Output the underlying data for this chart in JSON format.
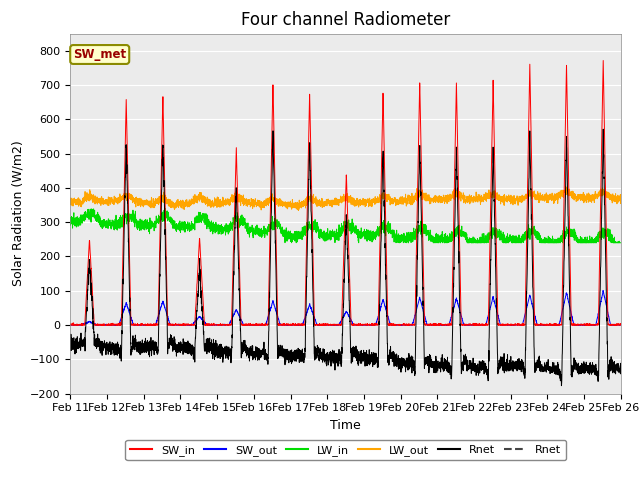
{
  "title": "Four channel Radiometer",
  "xlabel": "Time",
  "ylabel": "Solar Radiation (W/m2)",
  "ylim": [
    -200,
    850
  ],
  "yticks": [
    -200,
    -100,
    0,
    100,
    200,
    300,
    400,
    500,
    600,
    700,
    800
  ],
  "x_labels": [
    "Feb 11",
    "Feb 12",
    "Feb 13",
    "Feb 14",
    "Feb 15",
    "Feb 16",
    "Feb 17",
    "Feb 18",
    "Feb 19",
    "Feb 20",
    "Feb 21",
    "Feb 22",
    "Feb 23",
    "Feb 24",
    "Feb 25",
    "Feb 26"
  ],
  "annotation_text": "SW_met",
  "annotation_bg": "#ffffcc",
  "annotation_border": "#8b8b00",
  "colors": {
    "SW_in": "#ff0000",
    "SW_out": "#0000ff",
    "LW_in": "#00dd00",
    "LW_out": "#ffa500",
    "Rnet1": "#000000",
    "Rnet2": "#444444"
  },
  "legend_labels": [
    "SW_in",
    "SW_out",
    "LW_in",
    "LW_out",
    "Rnet",
    "Rnet"
  ],
  "fig_bg": "#ffffff",
  "plot_bg": "#ebebeb",
  "grid_color": "#ffffff",
  "title_fontsize": 12,
  "label_fontsize": 9,
  "tick_fontsize": 8
}
